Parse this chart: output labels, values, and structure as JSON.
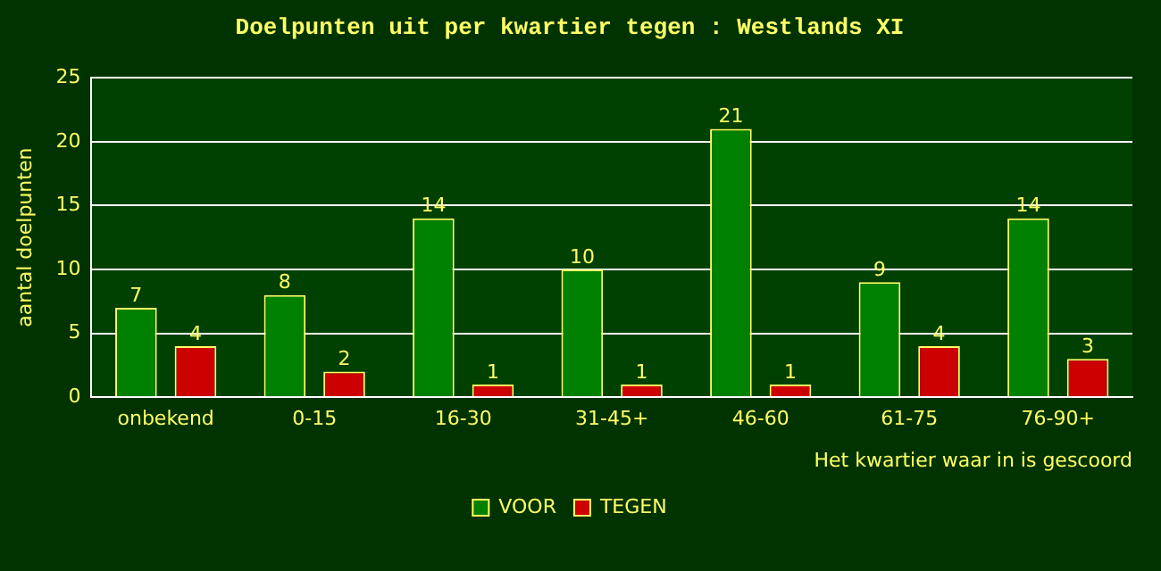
{
  "chart_data": {
    "type": "bar",
    "title": "Doelpunten uit per kwartier tegen : Westlands XI",
    "xlabel": "Het kwartier waar in is gescoord",
    "ylabel": "aantal doelpunten",
    "categories": [
      "onbekend",
      "0-15",
      "16-30",
      "31-45+",
      "46-60",
      "61-75",
      "76-90+"
    ],
    "series": [
      {
        "name": "VOOR",
        "color": "#008000",
        "values": [
          7,
          8,
          14,
          10,
          21,
          9,
          14
        ]
      },
      {
        "name": "TEGEN",
        "color": "#cc0000",
        "values": [
          4,
          2,
          1,
          1,
          1,
          4,
          3
        ]
      }
    ],
    "ylim": [
      0,
      25
    ],
    "yticks": [
      0,
      5,
      10,
      15,
      20,
      25
    ],
    "grid": "y",
    "legend": "bottom",
    "data_labels": true
  }
}
